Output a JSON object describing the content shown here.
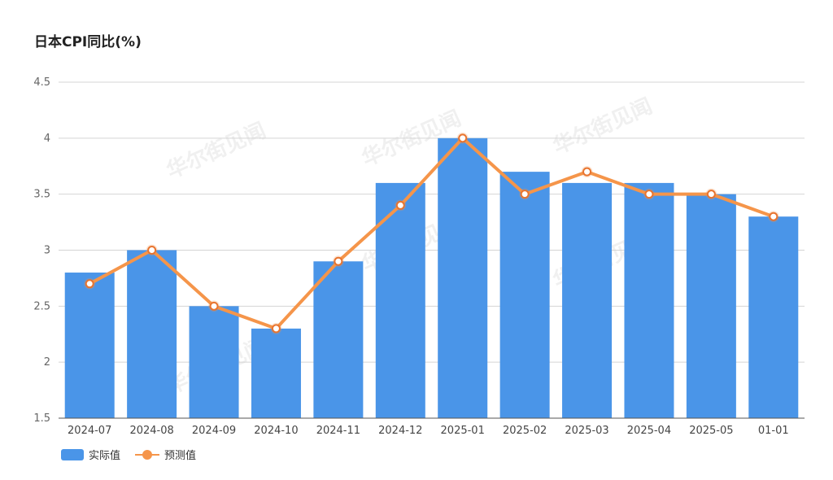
{
  "title": "日本CPI同比(%)",
  "watermark": "华尔街见闻",
  "colors": {
    "bar": "#4a95e8",
    "line": "#f5954a",
    "grid": "#d4d4d4",
    "axis": "#666666"
  },
  "legend": {
    "bar_label": "实际值",
    "line_label": "预测值"
  },
  "chart_data": {
    "type": "bar",
    "categories": [
      "2024-07",
      "2024-08",
      "2024-09",
      "2024-10",
      "2024-11",
      "2024-12",
      "2025-01",
      "2025-02",
      "2025-03",
      "2025-04",
      "2025-05",
      "01-01"
    ],
    "series": [
      {
        "name": "实际值",
        "type": "bar",
        "values": [
          2.8,
          3.0,
          2.5,
          2.3,
          2.9,
          3.6,
          4.0,
          3.7,
          3.6,
          3.6,
          3.5,
          3.3
        ]
      },
      {
        "name": "预测值",
        "type": "line",
        "values": [
          2.7,
          3.0,
          2.5,
          2.3,
          2.9,
          3.4,
          4.0,
          3.5,
          3.7,
          3.5,
          3.5,
          3.3
        ]
      }
    ],
    "yticks": [
      1.5,
      2,
      2.5,
      3,
      3.5,
      4,
      4.5
    ],
    "ylim": [
      1.5,
      4.5
    ],
    "grid": true,
    "legend_position": "bottom-left"
  }
}
